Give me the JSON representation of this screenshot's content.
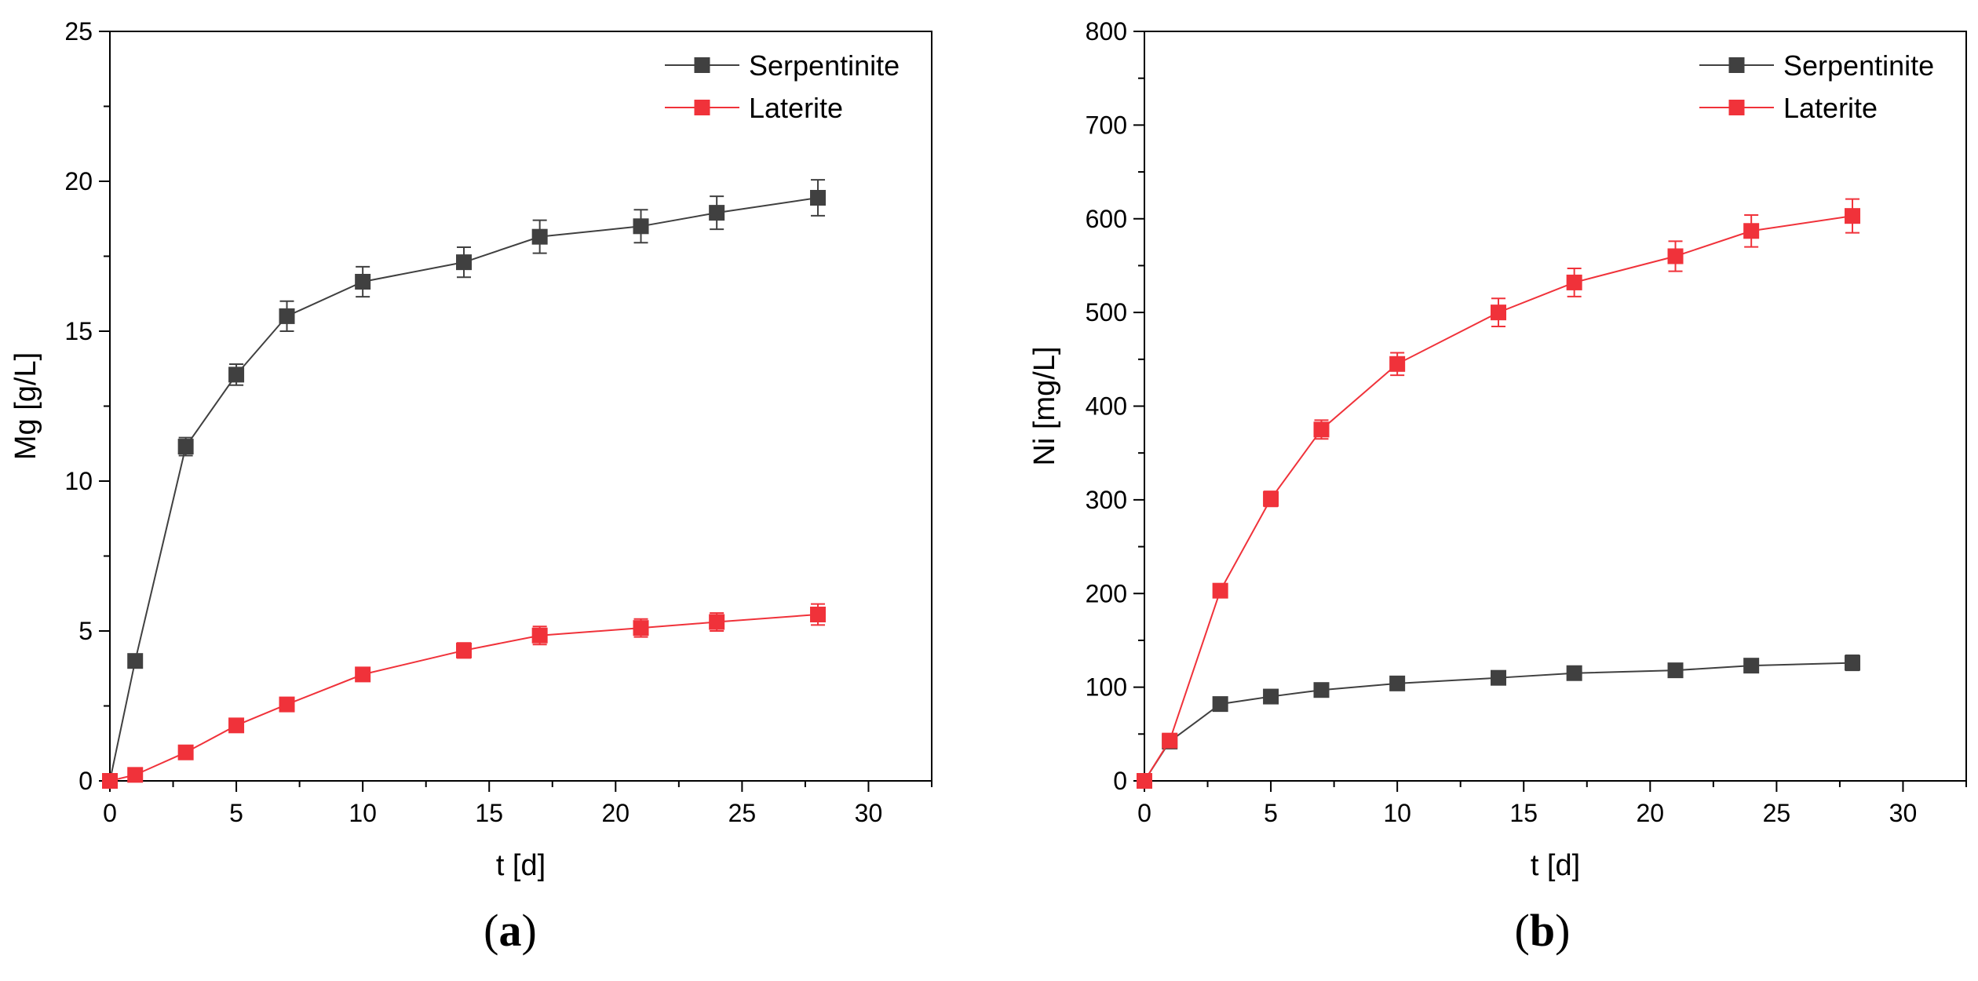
{
  "colors": {
    "serpentinite": "#404040",
    "laterite": "#f0323a",
    "axis": "#000000"
  },
  "chart_data": [
    {
      "panel": "a",
      "panel_label": "a",
      "type": "line",
      "xlabel": "t [d]",
      "ylabel": "Mg [g/L]",
      "xlim": [
        0,
        32.5
      ],
      "ylim": [
        0,
        25
      ],
      "xticks": [
        0,
        5,
        10,
        15,
        20,
        25,
        30
      ],
      "yticks": [
        0,
        5,
        10,
        15,
        20,
        25
      ],
      "legend_position": "top-right",
      "x": [
        0,
        1,
        3,
        5,
        7,
        10,
        14,
        17,
        21,
        24,
        28
      ],
      "series": [
        {
          "name": "Serpentinite",
          "color_key": "serpentinite",
          "values": [
            0,
            4.0,
            11.15,
            13.55,
            15.5,
            16.65,
            17.3,
            18.15,
            18.5,
            18.95,
            19.45
          ],
          "errors": [
            0,
            0,
            0.3,
            0.35,
            0.5,
            0.5,
            0.5,
            0.55,
            0.55,
            0.55,
            0.6
          ]
        },
        {
          "name": "Laterite",
          "color_key": "laterite",
          "values": [
            0,
            0.2,
            0.95,
            1.85,
            2.55,
            3.55,
            4.35,
            4.85,
            5.1,
            5.3,
            5.55
          ],
          "errors": [
            0,
            0,
            0,
            0,
            0,
            0.1,
            0.25,
            0.3,
            0.3,
            0.3,
            0.35
          ]
        }
      ]
    },
    {
      "panel": "b",
      "panel_label": "b",
      "type": "line",
      "xlabel": "t [d]",
      "ylabel": "Ni [mg/L]",
      "xlim": [
        0,
        32.5
      ],
      "ylim": [
        0,
        800
      ],
      "xticks": [
        0,
        5,
        10,
        15,
        20,
        25,
        30
      ],
      "yticks": [
        0,
        100,
        200,
        300,
        400,
        500,
        600,
        700,
        800
      ],
      "legend_position": "top-right",
      "x": [
        0,
        1,
        3,
        5,
        7,
        10,
        14,
        17,
        21,
        24,
        28
      ],
      "series": [
        {
          "name": "Serpentinite",
          "color_key": "serpentinite",
          "values": [
            0,
            42,
            82,
            90,
            97,
            104,
            110,
            115,
            118,
            123,
            126
          ],
          "errors": [
            0,
            0,
            0,
            0,
            0,
            0,
            0,
            5,
            6,
            6,
            8
          ]
        },
        {
          "name": "Laterite",
          "color_key": "laterite",
          "values": [
            0,
            43,
            203,
            301,
            375,
            445,
            500,
            532,
            560,
            587,
            603
          ],
          "errors": [
            0,
            0,
            0,
            8,
            10,
            12,
            15,
            15,
            16,
            17,
            18
          ]
        }
      ]
    }
  ]
}
